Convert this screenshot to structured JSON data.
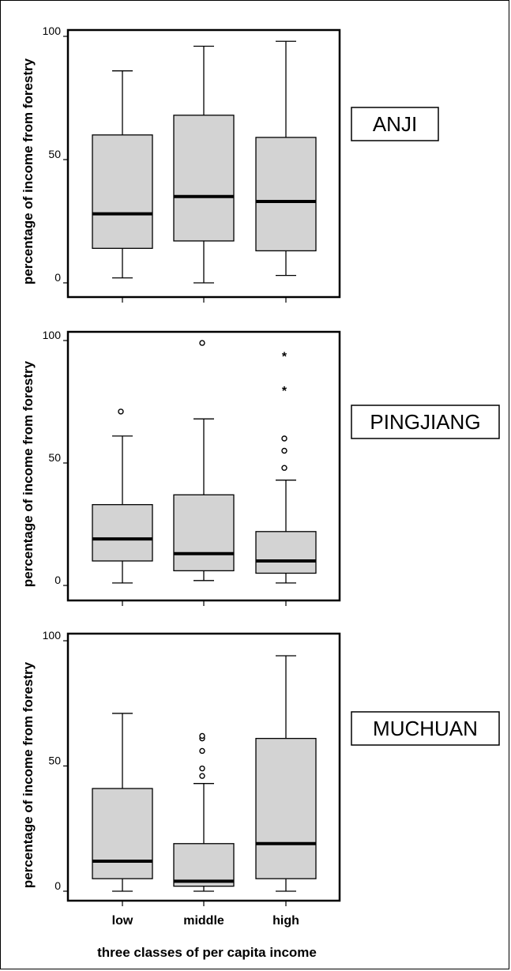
{
  "chart_data": [
    {
      "type": "box",
      "site_label": "ANJI",
      "ylabel": "percentage of income from forestry",
      "ylim": [
        0,
        100
      ],
      "yticks": [
        0,
        50,
        100
      ],
      "categories": [
        "low",
        "middle",
        "high"
      ],
      "boxes": [
        {
          "category": "low",
          "whisker_low": 2,
          "q1": 14,
          "median": 28,
          "q3": 60,
          "whisker_high": 86,
          "outliers": [],
          "extremes": []
        },
        {
          "category": "middle",
          "whisker_low": 0,
          "q1": 17,
          "median": 35,
          "q3": 68,
          "whisker_high": 96,
          "outliers": [],
          "extremes": []
        },
        {
          "category": "high",
          "whisker_low": 3,
          "q1": 13,
          "median": 33,
          "q3": 59,
          "whisker_high": 98,
          "outliers": [],
          "extremes": []
        }
      ]
    },
    {
      "type": "box",
      "site_label": "PINGJIANG",
      "ylabel": "percentage of income from forestry",
      "ylim": [
        0,
        100
      ],
      "yticks": [
        0,
        50,
        100
      ],
      "categories": [
        "low",
        "middle",
        "high"
      ],
      "boxes": [
        {
          "category": "low",
          "whisker_low": 1,
          "q1": 10,
          "median": 19,
          "q3": 33,
          "whisker_high": 61,
          "outliers": [
            71
          ],
          "extremes": []
        },
        {
          "category": "middle",
          "whisker_low": 2,
          "q1": 6,
          "median": 13,
          "q3": 37,
          "whisker_high": 68,
          "outliers": [
            99
          ],
          "extremes": []
        },
        {
          "category": "high",
          "whisker_low": 1,
          "q1": 5,
          "median": 10,
          "q3": 22,
          "whisker_high": 43,
          "outliers": [
            48,
            55,
            60
          ],
          "extremes": [
            80,
            94
          ]
        }
      ]
    },
    {
      "type": "box",
      "site_label": "MUCHUAN",
      "ylabel": "percentage of income from forestry",
      "ylim": [
        0,
        100
      ],
      "yticks": [
        0,
        50,
        100
      ],
      "categories": [
        "low",
        "middle",
        "high"
      ],
      "xlabel": "three classes of per capita income",
      "boxes": [
        {
          "category": "low",
          "whisker_low": 0,
          "q1": 5,
          "median": 12,
          "q3": 41,
          "whisker_high": 71,
          "outliers": [],
          "extremes": []
        },
        {
          "category": "middle",
          "whisker_low": 0,
          "q1": 2,
          "median": 4,
          "q3": 19,
          "whisker_high": 43,
          "outliers": [
            46,
            49,
            56,
            61,
            62
          ],
          "extremes": []
        },
        {
          "category": "high",
          "whisker_low": 0,
          "q1": 5,
          "median": 19,
          "q3": 61,
          "whisker_high": 94,
          "outliers": [],
          "extremes": []
        }
      ]
    }
  ]
}
